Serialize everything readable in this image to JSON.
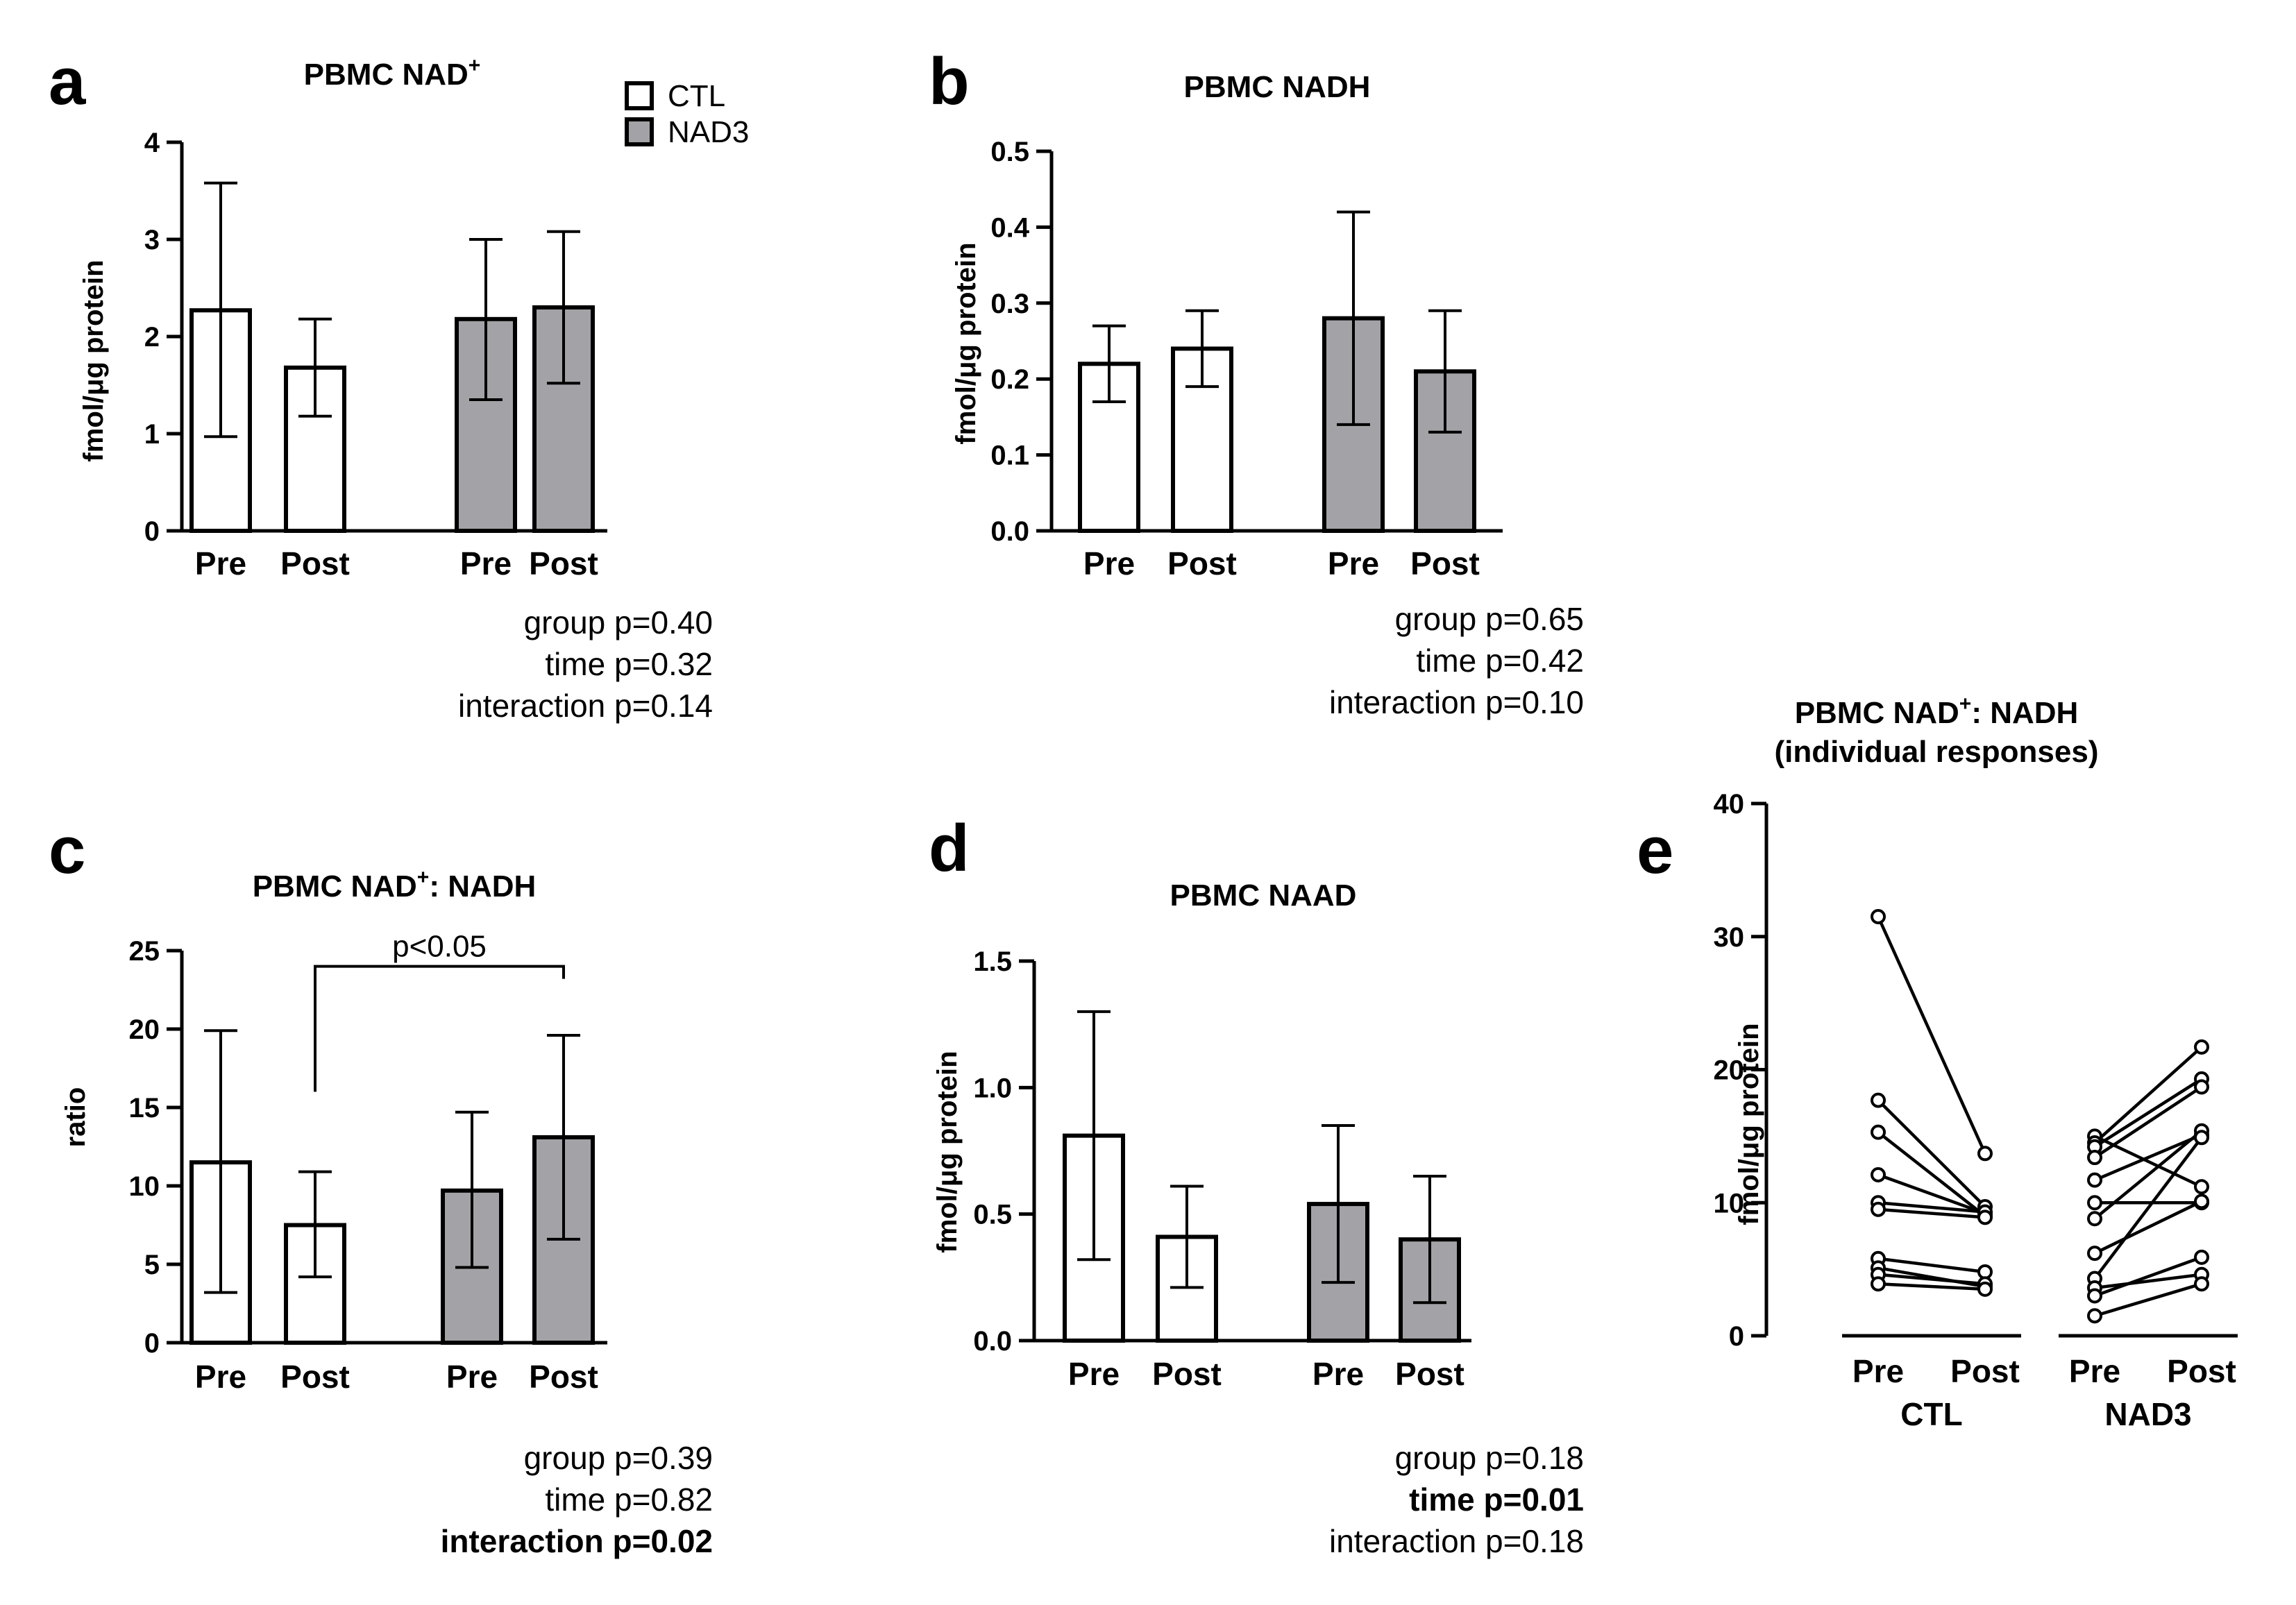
{
  "colors": {
    "ctl": "#ffffff",
    "nad3": "#a3a3a7",
    "stroke": "#000000"
  },
  "legend": [
    {
      "label": "CTL",
      "color": "#ffffff"
    },
    {
      "label": "NAD3",
      "color": "#a3a3a7"
    }
  ],
  "chart_data": [
    {
      "id": "a",
      "letter": "a",
      "type": "bar",
      "title": "PBMC NAD",
      "title_sup": "+",
      "title_rest": "",
      "ylabel": "fmol/μg protein",
      "ylim": [
        0,
        4
      ],
      "yticks": [
        "0",
        "1",
        "2",
        "3",
        "4"
      ],
      "categories": [
        "Pre",
        "Post",
        "Pre",
        "Post"
      ],
      "groups": [
        "CTL",
        "CTL",
        "NAD3",
        "NAD3"
      ],
      "values": [
        2.27,
        1.68,
        2.18,
        2.3
      ],
      "err_low": [
        0.97,
        1.18,
        1.35,
        1.52
      ],
      "err_high": [
        3.58,
        2.18,
        3.0,
        3.08
      ],
      "stats": [
        {
          "text": "group p=0.40",
          "bold": false
        },
        {
          "text": "time p=0.32",
          "bold": false
        },
        {
          "text": "interaction p=0.14",
          "bold": false
        }
      ]
    },
    {
      "id": "b",
      "letter": "b",
      "type": "bar",
      "title": "PBMC NADH",
      "title_sup": "",
      "title_rest": "",
      "ylabel": "fmol/μg protein",
      "ylim": [
        0,
        0.5
      ],
      "yticks": [
        "0.0",
        "0.1",
        "0.2",
        "0.3",
        "0.4",
        "0.5"
      ],
      "categories": [
        "Pre",
        "Post",
        "Pre",
        "Post"
      ],
      "groups": [
        "CTL",
        "CTL",
        "NAD3",
        "NAD3"
      ],
      "values": [
        0.22,
        0.24,
        0.28,
        0.21
      ],
      "err_low": [
        0.17,
        0.19,
        0.14,
        0.13
      ],
      "err_high": [
        0.27,
        0.29,
        0.42,
        0.29
      ],
      "stats": [
        {
          "text": "group p=0.65",
          "bold": false
        },
        {
          "text": "time p=0.42",
          "bold": false
        },
        {
          "text": "interaction p=0.10",
          "bold": false
        }
      ]
    },
    {
      "id": "c",
      "letter": "c",
      "type": "bar",
      "title": "PBMC NAD",
      "title_sup": "+",
      "title_rest": ": NADH",
      "ylabel": "ratio",
      "ylim": [
        0,
        25
      ],
      "yticks": [
        "0",
        "5",
        "10",
        "15",
        "20",
        "25"
      ],
      "categories": [
        "Pre",
        "Post",
        "Pre",
        "Post"
      ],
      "groups": [
        "CTL",
        "CTL",
        "NAD3",
        "NAD3"
      ],
      "values": [
        11.5,
        7.5,
        9.7,
        13.1
      ],
      "err_low": [
        3.2,
        4.2,
        4.8,
        6.6
      ],
      "err_high": [
        19.9,
        10.9,
        14.7,
        19.6
      ],
      "significance": {
        "label": "p<0.05",
        "from": 1,
        "to": 3,
        "level": 24
      },
      "stats": [
        {
          "text": "group p=0.39",
          "bold": false
        },
        {
          "text": "time p=0.82",
          "bold": false
        },
        {
          "text": "interaction p=0.02",
          "bold": true
        }
      ]
    },
    {
      "id": "d",
      "letter": "d",
      "type": "bar",
      "title": "PBMC NAAD",
      "title_sup": "",
      "title_rest": "",
      "ylabel": "fmol/μg protein",
      "ylim": [
        0,
        1.5
      ],
      "yticks": [
        "0.0",
        "0.5",
        "1.0",
        "1.5"
      ],
      "categories": [
        "Pre",
        "Post",
        "Pre",
        "Post"
      ],
      "groups": [
        "CTL",
        "CTL",
        "NAD3",
        "NAD3"
      ],
      "values": [
        0.81,
        0.41,
        0.54,
        0.4
      ],
      "err_low": [
        0.32,
        0.21,
        0.23,
        0.15
      ],
      "err_high": [
        1.3,
        0.61,
        0.85,
        0.65
      ],
      "stats": [
        {
          "text": "group p=0.18",
          "bold": false
        },
        {
          "text": "time p=0.01",
          "bold": true
        },
        {
          "text": "interaction p=0.18",
          "bold": false
        }
      ]
    },
    {
      "id": "e",
      "letter": "e",
      "type": "line",
      "title": "PBMC NAD",
      "title_sup": "+",
      "title_rest": ": NADH",
      "subtitle": "(individual responses)",
      "ylabel": "fmol/μg protein",
      "ylim": [
        0,
        40
      ],
      "yticks": [
        "0",
        "10",
        "20",
        "30",
        "40"
      ],
      "groups": [
        {
          "name": "CTL",
          "x_labels": [
            "Pre",
            "Post"
          ],
          "pairs": [
            [
              31.5,
              13.7
            ],
            [
              17.7,
              9.7
            ],
            [
              15.3,
              9.0
            ],
            [
              12.1,
              9.2
            ],
            [
              10.0,
              9.3
            ],
            [
              9.5,
              8.9
            ],
            [
              5.8,
              4.8
            ],
            [
              5.1,
              3.7
            ],
            [
              4.6,
              3.9
            ],
            [
              3.9,
              3.5
            ]
          ]
        },
        {
          "name": "NAD3",
          "x_labels": [
            "Pre",
            "Post"
          ],
          "pairs": [
            [
              15.0,
              11.2
            ],
            [
              14.5,
              21.7
            ],
            [
              14.2,
              19.3
            ],
            [
              13.4,
              18.7
            ],
            [
              11.7,
              15.1
            ],
            [
              10.0,
              10.0
            ],
            [
              8.8,
              15.4
            ],
            [
              6.2,
              10.1
            ],
            [
              4.3,
              14.9
            ],
            [
              3.6,
              4.6
            ],
            [
              3.0,
              5.9
            ],
            [
              1.5,
              3.9
            ]
          ]
        }
      ]
    }
  ]
}
